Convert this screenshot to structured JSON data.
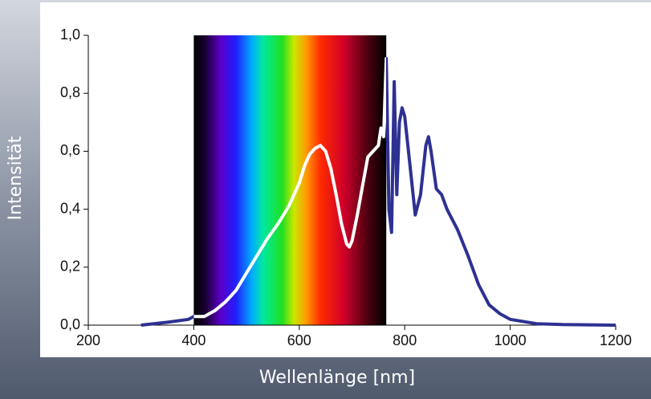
{
  "chart_data": {
    "type": "line",
    "x_label": "Wellenlänge [nm]",
    "y_label": "Intensität",
    "highlight_xlim": [
      400,
      765
    ],
    "x": [
      300,
      350,
      390,
      400,
      420,
      440,
      460,
      480,
      500,
      520,
      540,
      560,
      580,
      600,
      610,
      620,
      630,
      640,
      650,
      660,
      670,
      680,
      690,
      695,
      700,
      710,
      720,
      730,
      740,
      750,
      755,
      760,
      765,
      768,
      770,
      775,
      780,
      785,
      790,
      795,
      800,
      810,
      820,
      830,
      840,
      845,
      850,
      860,
      870,
      880,
      900,
      920,
      940,
      960,
      980,
      1000,
      1050,
      1100,
      1200
    ],
    "series": [
      {
        "color": "#2e3192",
        "values": [
          0.0,
          0.01,
          0.02,
          0.03,
          0.03,
          0.05,
          0.08,
          0.12,
          0.18,
          0.24,
          0.3,
          0.35,
          0.41,
          0.49,
          0.55,
          0.59,
          0.61,
          0.62,
          0.6,
          0.54,
          0.45,
          0.35,
          0.28,
          0.27,
          0.29,
          0.38,
          0.48,
          0.58,
          0.6,
          0.62,
          0.68,
          0.65,
          0.92,
          0.6,
          0.4,
          0.32,
          0.84,
          0.45,
          0.7,
          0.75,
          0.72,
          0.55,
          0.38,
          0.45,
          0.62,
          0.65,
          0.6,
          0.47,
          0.45,
          0.4,
          0.33,
          0.24,
          0.14,
          0.07,
          0.04,
          0.02,
          0.005,
          0.002,
          0.0
        ]
      }
    ],
    "xlim": [
      200,
      1200
    ],
    "xticks": [
      200,
      400,
      600,
      800,
      1000,
      1200
    ],
    "ylim": [
      0,
      1
    ],
    "yticks": [
      {
        "value": 0,
        "label": "0,0"
      },
      {
        "value": 0.2,
        "label": "0,2"
      },
      {
        "value": 0.4,
        "label": "0,4"
      },
      {
        "value": 0.6,
        "label": "0,6"
      },
      {
        "value": 0.8,
        "label": "0,8"
      },
      {
        "value": 1,
        "label": "1,0"
      }
    ]
  }
}
